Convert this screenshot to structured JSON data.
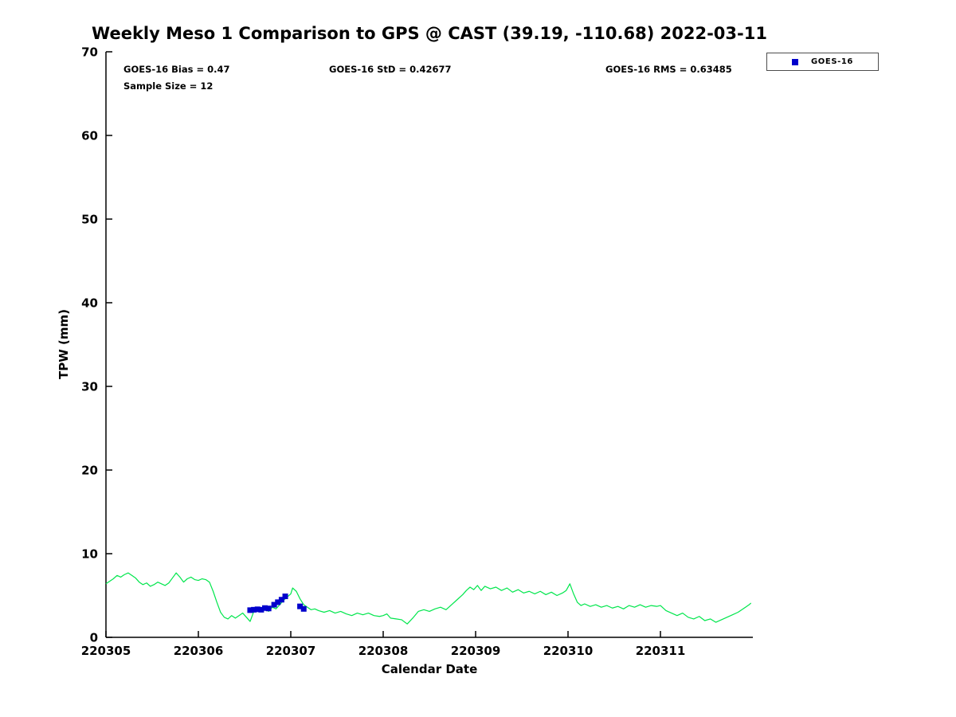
{
  "chart_data": {
    "type": "line",
    "title": "Weekly Meso 1 Comparison to GPS @ CAST (39.19, -110.68) 2022-03-11",
    "xlabel": "Calendar Date",
    "ylabel": "TPW (mm)",
    "ylim": [
      0,
      70
    ],
    "yticks": [
      0,
      10,
      20,
      30,
      40,
      50,
      60,
      70
    ],
    "x_range": [
      0,
      7
    ],
    "xticks": [
      {
        "x": 0,
        "label": "220305"
      },
      {
        "x": 1,
        "label": "220306"
      },
      {
        "x": 2,
        "label": "220307"
      },
      {
        "x": 3,
        "label": "220308"
      },
      {
        "x": 4,
        "label": "220309"
      },
      {
        "x": 5,
        "label": "220310"
      },
      {
        "x": 6,
        "label": "220311"
      }
    ],
    "grid": false,
    "legend_position": "top-right",
    "annotations": {
      "bias": "GOES-16 Bias = 0.47",
      "std": "GOES-16 StD = 0.42677",
      "rms": "GOES-16 RMS = 0.63485",
      "sample_size": "Sample Size = 12"
    },
    "legend": [
      {
        "label": "GOES-16",
        "marker": "square",
        "color": "#0000cc"
      }
    ],
    "colors": {
      "gps_line": "#00e64c",
      "goes16_marker": "#0000cc",
      "axis": "#000000"
    },
    "series": [
      {
        "name": "GPS TPW",
        "type": "line",
        "color": "#00e64c",
        "points": [
          [
            0.0,
            6.4
          ],
          [
            0.04,
            6.7
          ],
          [
            0.08,
            7.0
          ],
          [
            0.12,
            7.4
          ],
          [
            0.16,
            7.2
          ],
          [
            0.2,
            7.5
          ],
          [
            0.24,
            7.7
          ],
          [
            0.28,
            7.4
          ],
          [
            0.32,
            7.1
          ],
          [
            0.36,
            6.6
          ],
          [
            0.4,
            6.3
          ],
          [
            0.44,
            6.5
          ],
          [
            0.48,
            6.1
          ],
          [
            0.52,
            6.3
          ],
          [
            0.56,
            6.6
          ],
          [
            0.6,
            6.4
          ],
          [
            0.64,
            6.2
          ],
          [
            0.68,
            6.5
          ],
          [
            0.72,
            7.1
          ],
          [
            0.76,
            7.7
          ],
          [
            0.8,
            7.2
          ],
          [
            0.84,
            6.6
          ],
          [
            0.88,
            7.0
          ],
          [
            0.92,
            7.2
          ],
          [
            0.96,
            6.9
          ],
          [
            1.0,
            6.8
          ],
          [
            1.04,
            7.0
          ],
          [
            1.08,
            6.9
          ],
          [
            1.12,
            6.6
          ],
          [
            1.16,
            5.5
          ],
          [
            1.2,
            4.2
          ],
          [
            1.24,
            3.0
          ],
          [
            1.28,
            2.4
          ],
          [
            1.32,
            2.2
          ],
          [
            1.36,
            2.6
          ],
          [
            1.4,
            2.3
          ],
          [
            1.44,
            2.6
          ],
          [
            1.48,
            2.9
          ],
          [
            1.52,
            2.4
          ],
          [
            1.56,
            1.9
          ],
          [
            1.6,
            3.1
          ],
          [
            1.64,
            3.3
          ],
          [
            1.68,
            3.2
          ],
          [
            1.72,
            3.5
          ],
          [
            1.76,
            3.1
          ],
          [
            1.8,
            3.6
          ],
          [
            1.84,
            3.4
          ],
          [
            1.88,
            3.9
          ],
          [
            1.92,
            4.4
          ],
          [
            1.96,
            4.8
          ],
          [
            2.0,
            5.2
          ],
          [
            2.02,
            5.9
          ],
          [
            2.06,
            5.5
          ],
          [
            2.1,
            4.6
          ],
          [
            2.14,
            3.9
          ],
          [
            2.18,
            3.6
          ],
          [
            2.22,
            3.3
          ],
          [
            2.26,
            3.4
          ],
          [
            2.3,
            3.2
          ],
          [
            2.36,
            3.0
          ],
          [
            2.42,
            3.2
          ],
          [
            2.48,
            2.9
          ],
          [
            2.54,
            3.1
          ],
          [
            2.6,
            2.8
          ],
          [
            2.66,
            2.6
          ],
          [
            2.72,
            2.9
          ],
          [
            2.78,
            2.7
          ],
          [
            2.84,
            2.9
          ],
          [
            2.9,
            2.6
          ],
          [
            2.96,
            2.5
          ],
          [
            3.0,
            2.6
          ],
          [
            3.04,
            2.8
          ],
          [
            3.08,
            2.3
          ],
          [
            3.14,
            2.2
          ],
          [
            3.2,
            2.1
          ],
          [
            3.26,
            1.6
          ],
          [
            3.32,
            2.3
          ],
          [
            3.38,
            3.1
          ],
          [
            3.44,
            3.3
          ],
          [
            3.5,
            3.1
          ],
          [
            3.56,
            3.4
          ],
          [
            3.62,
            3.6
          ],
          [
            3.68,
            3.3
          ],
          [
            3.74,
            3.9
          ],
          [
            3.8,
            4.5
          ],
          [
            3.86,
            5.1
          ],
          [
            3.9,
            5.6
          ],
          [
            3.94,
            6.0
          ],
          [
            3.98,
            5.7
          ],
          [
            4.02,
            6.2
          ],
          [
            4.06,
            5.6
          ],
          [
            4.1,
            6.1
          ],
          [
            4.16,
            5.8
          ],
          [
            4.22,
            6.0
          ],
          [
            4.28,
            5.6
          ],
          [
            4.34,
            5.9
          ],
          [
            4.4,
            5.4
          ],
          [
            4.46,
            5.7
          ],
          [
            4.52,
            5.3
          ],
          [
            4.58,
            5.5
          ],
          [
            4.64,
            5.2
          ],
          [
            4.7,
            5.5
          ],
          [
            4.76,
            5.1
          ],
          [
            4.82,
            5.4
          ],
          [
            4.88,
            5.0
          ],
          [
            4.94,
            5.3
          ],
          [
            4.98,
            5.6
          ],
          [
            5.02,
            6.4
          ],
          [
            5.06,
            5.2
          ],
          [
            5.1,
            4.2
          ],
          [
            5.14,
            3.8
          ],
          [
            5.18,
            4.0
          ],
          [
            5.24,
            3.7
          ],
          [
            5.3,
            3.9
          ],
          [
            5.36,
            3.6
          ],
          [
            5.42,
            3.8
          ],
          [
            5.48,
            3.5
          ],
          [
            5.54,
            3.7
          ],
          [
            5.6,
            3.4
          ],
          [
            5.66,
            3.8
          ],
          [
            5.72,
            3.6
          ],
          [
            5.78,
            3.9
          ],
          [
            5.84,
            3.6
          ],
          [
            5.9,
            3.8
          ],
          [
            5.96,
            3.7
          ],
          [
            6.0,
            3.8
          ],
          [
            6.06,
            3.2
          ],
          [
            6.12,
            2.9
          ],
          [
            6.18,
            2.6
          ],
          [
            6.24,
            2.9
          ],
          [
            6.3,
            2.4
          ],
          [
            6.36,
            2.2
          ],
          [
            6.42,
            2.5
          ],
          [
            6.48,
            2.0
          ],
          [
            6.54,
            2.2
          ],
          [
            6.6,
            1.8
          ],
          [
            6.66,
            2.1
          ],
          [
            6.72,
            2.4
          ],
          [
            6.78,
            2.7
          ],
          [
            6.84,
            3.0
          ],
          [
            6.88,
            3.3
          ],
          [
            6.92,
            3.6
          ],
          [
            6.96,
            3.9
          ],
          [
            6.98,
            4.1
          ]
        ]
      },
      {
        "name": "GOES-16",
        "type": "scatter",
        "marker": "square",
        "color": "#0000cc",
        "points": [
          [
            1.56,
            3.25
          ],
          [
            1.6,
            3.3
          ],
          [
            1.64,
            3.35
          ],
          [
            1.68,
            3.3
          ],
          [
            1.72,
            3.5
          ],
          [
            1.76,
            3.45
          ],
          [
            1.82,
            3.9
          ],
          [
            1.86,
            4.2
          ],
          [
            1.9,
            4.5
          ],
          [
            1.94,
            4.9
          ],
          [
            2.1,
            3.7
          ],
          [
            2.14,
            3.4
          ]
        ]
      }
    ]
  }
}
